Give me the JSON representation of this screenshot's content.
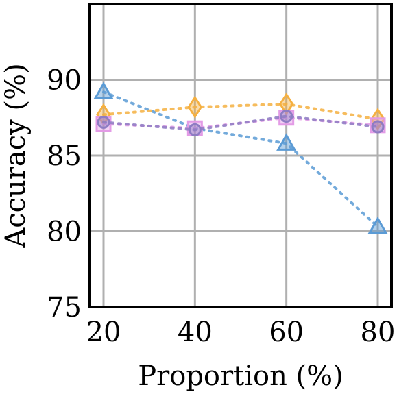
{
  "chart_data": {
    "type": "line",
    "title": "",
    "xlabel": "Proportion (%)",
    "ylabel": "Accuracy (%)",
    "xlim": [
      17,
      83
    ],
    "ylim": [
      75,
      95
    ],
    "grid": true,
    "x": [
      20,
      40,
      60,
      80
    ],
    "x_tick_labels": [
      "20",
      "40",
      "60",
      "80"
    ],
    "y_ticks": [
      75,
      80,
      85,
      90
    ],
    "y_tick_labels": [
      "75",
      "80",
      "85",
      "90"
    ],
    "series": [
      {
        "marker": "triangle",
        "color": "#5b9bd5",
        "values": [
          89.2,
          null,
          85.8,
          80.3
        ],
        "line_values": [
          89.2,
          86.8,
          85.8,
          80.3
        ]
      },
      {
        "marker": "diamond",
        "color": "#f5b041",
        "values": [
          87.7,
          88.2,
          88.4,
          87.4
        ]
      },
      {
        "marker": "square",
        "color": "#e39be6",
        "values": [
          87.1,
          86.8,
          87.5,
          87.0
        ]
      },
      {
        "marker": "circle",
        "color": "#8e7cc3",
        "values": [
          87.2,
          86.7,
          87.6,
          86.9
        ]
      }
    ]
  }
}
